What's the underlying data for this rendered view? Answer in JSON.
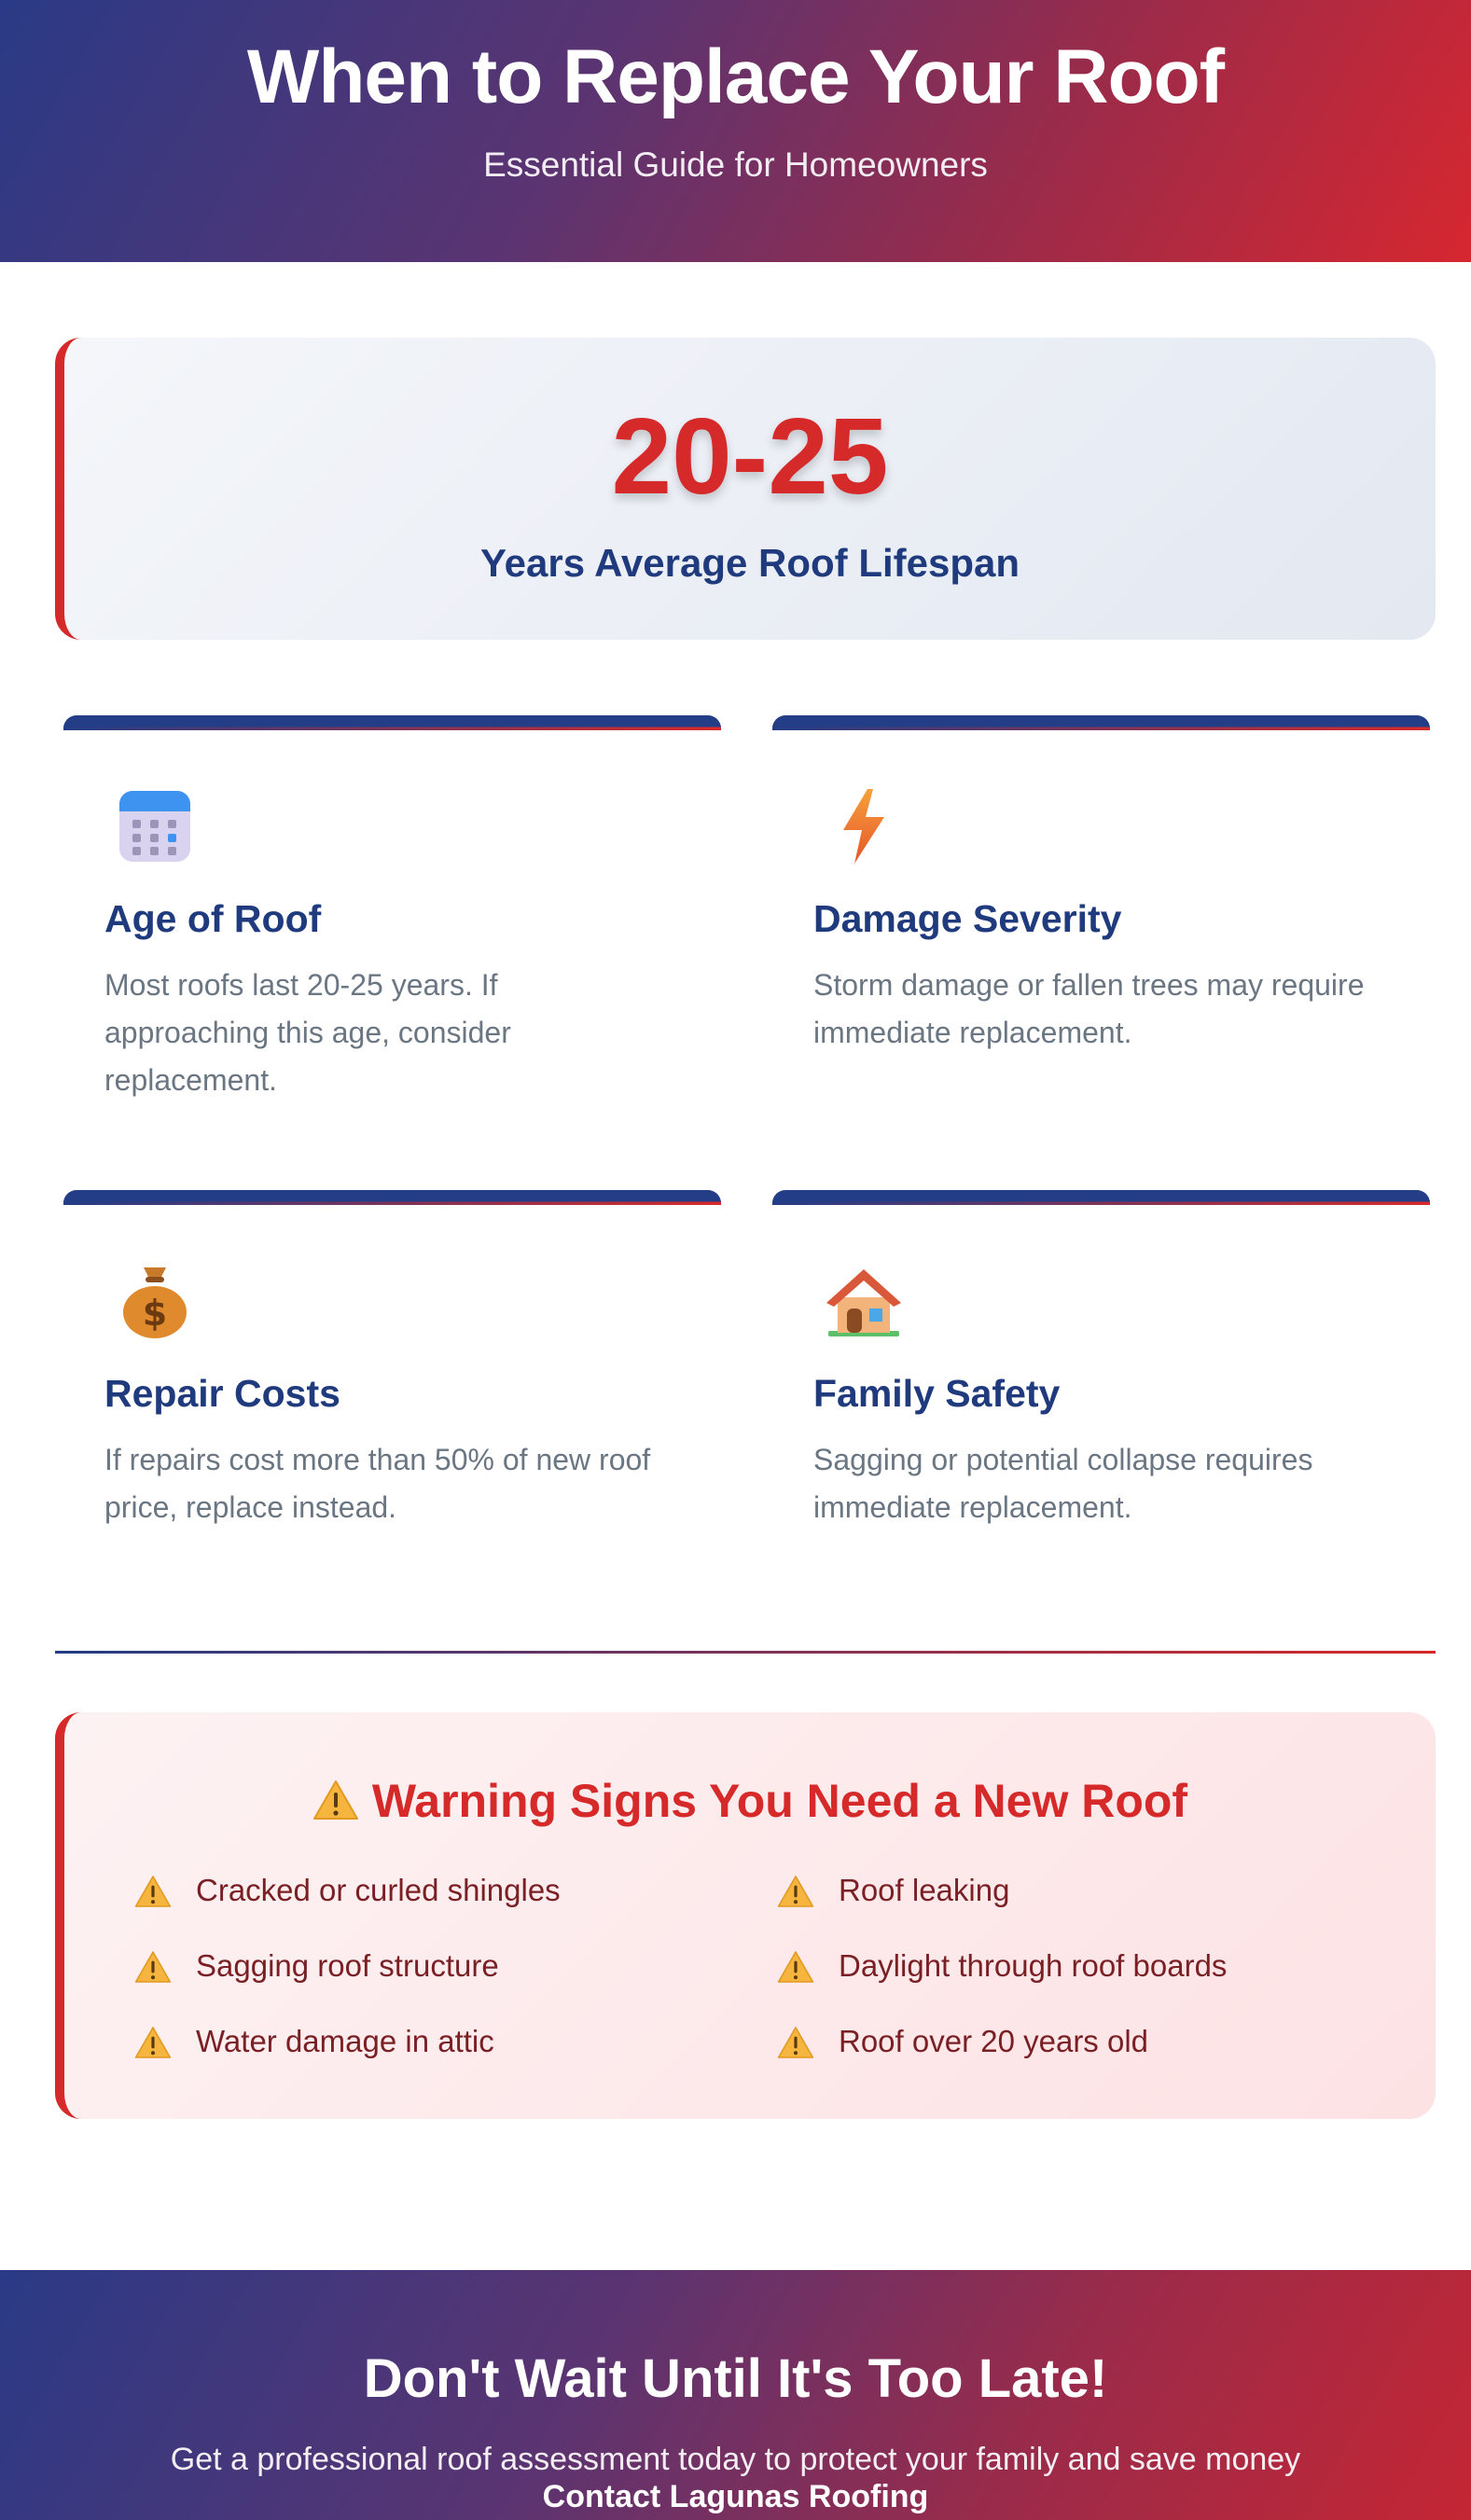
{
  "header": {
    "title": "When to Replace Your Roof",
    "subtitle": "Essential Guide for Homeowners"
  },
  "stat": {
    "number": "20-25",
    "label": "Years Average Roof Lifespan"
  },
  "features": [
    {
      "icon": "calendar-icon",
      "title": "Age of Roof",
      "text": "Most roofs last 20-25 years. If approaching this age, consider replacement."
    },
    {
      "icon": "lightning-icon",
      "title": "Damage Severity",
      "text": "Storm damage or fallen trees may require immediate replacement."
    },
    {
      "icon": "money-bag-icon",
      "title": "Repair Costs",
      "text": "If repairs cost more than 50% of new roof price, replace instead."
    },
    {
      "icon": "house-icon",
      "title": "Family Safety",
      "text": "Sagging or potential collapse requires immediate replacement."
    }
  ],
  "warnings": {
    "title": "Warning Signs You Need a New Roof",
    "items": [
      "Cracked or curled shingles",
      "Roof leaking",
      "Sagging roof structure",
      "Daylight through roof boards",
      "Water damage in attic",
      "Roof over 20 years old"
    ]
  },
  "footer": {
    "title": "Don't Wait Until It's Too Late!",
    "text": "Get a professional roof assessment today to protect your family and save money",
    "contact": "Contact Lagunas Roofing"
  },
  "colors": {
    "brand_blue": "#1f3a7d",
    "brand_red": "#d62a2a",
    "body_gray": "#6b7683"
  }
}
